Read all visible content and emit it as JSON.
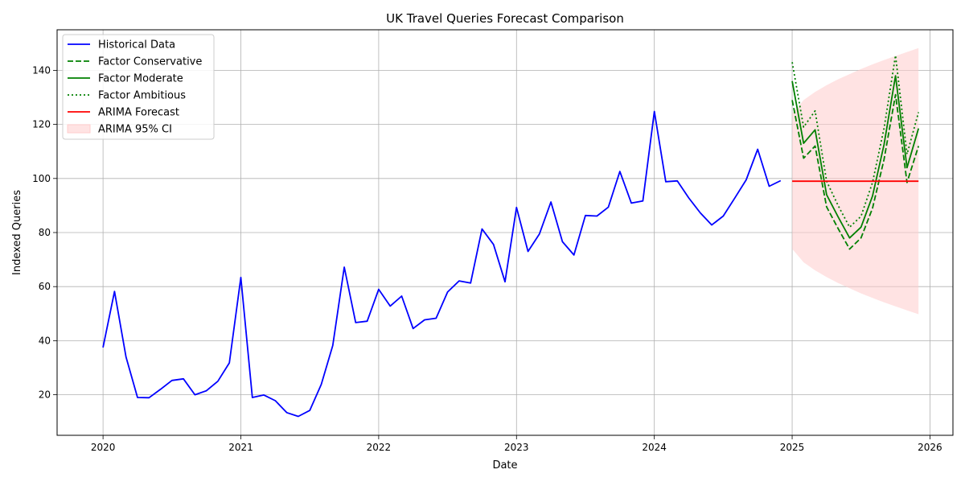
{
  "chart_data": {
    "type": "line",
    "title": "UK Travel Queries Forecast Comparison",
    "xlabel": "Date",
    "ylabel": "Indexed Queries",
    "xlim": [
      "2019-09",
      "2026-03"
    ],
    "ylim": [
      5,
      155
    ],
    "grid": true,
    "legend_position": "top-left",
    "x_ticks": [
      "2020",
      "2021",
      "2022",
      "2023",
      "2024",
      "2025",
      "2026"
    ],
    "y_ticks": [
      20,
      40,
      60,
      80,
      100,
      120,
      140
    ],
    "historical": {
      "name": "Historical Data",
      "color": "#0000ff",
      "style": "solid",
      "x": [
        "2020-01",
        "2020-02",
        "2020-03",
        "2020-04",
        "2020-05",
        "2020-06",
        "2020-07",
        "2020-08",
        "2020-09",
        "2020-10",
        "2020-11",
        "2020-12",
        "2021-01",
        "2021-02",
        "2021-03",
        "2021-04",
        "2021-05",
        "2021-06",
        "2021-07",
        "2021-08",
        "2021-09",
        "2021-10",
        "2021-11",
        "2021-12",
        "2022-01",
        "2022-02",
        "2022-03",
        "2022-04",
        "2022-05",
        "2022-06",
        "2022-07",
        "2022-08",
        "2022-09",
        "2022-10",
        "2022-11",
        "2022-12",
        "2023-01",
        "2023-02",
        "2023-03",
        "2023-04",
        "2023-05",
        "2023-06",
        "2023-07",
        "2023-08",
        "2023-09",
        "2023-10",
        "2023-11",
        "2023-12",
        "2024-01",
        "2024-02",
        "2024-03",
        "2024-04",
        "2024-05",
        "2024-06",
        "2024-07",
        "2024-08",
        "2024-09",
        "2024-10",
        "2024-11",
        "2024-12"
      ],
      "values": [
        37.5,
        58.2,
        34.0,
        19.0,
        18.9,
        22.0,
        25.3,
        25.9,
        20.0,
        21.5,
        25.0,
        31.8,
        63.4,
        19.0,
        19.9,
        17.8,
        13.4,
        12.0,
        14.2,
        23.8,
        38.2,
        67.2,
        46.7,
        47.2,
        59.0,
        52.8,
        56.5,
        44.5,
        47.7,
        48.3,
        58.0,
        62.1,
        61.3,
        81.3,
        75.6,
        61.8,
        89.3,
        73.0,
        79.5,
        91.3,
        76.6,
        71.7,
        86.3,
        86.1,
        89.4,
        102.6,
        90.9,
        91.7,
        124.8,
        98.8,
        99.1,
        92.8,
        87.3,
        82.8,
        86.1,
        92.7,
        99.5,
        110.8,
        97.1,
        99.2
      ]
    },
    "forecast_x": [
      "2025-01",
      "2025-02",
      "2025-03",
      "2025-04",
      "2025-05",
      "2025-06",
      "2025-07",
      "2025-08",
      "2025-09",
      "2025-10",
      "2025-11",
      "2025-12"
    ],
    "series": [
      {
        "name": "Factor Conservative",
        "color": "#008000",
        "style": "dashed",
        "values": [
          129.0,
          107.5,
          112.0,
          89.5,
          81.5,
          73.9,
          78.0,
          89.0,
          107.0,
          131.0,
          98.5,
          112.0
        ]
      },
      {
        "name": "Factor Moderate",
        "color": "#008000",
        "style": "solid",
        "values": [
          136.0,
          113.0,
          118.0,
          94.0,
          85.8,
          78.0,
          82.0,
          93.5,
          112.5,
          138.0,
          104.0,
          118.5
        ]
      },
      {
        "name": "Factor Ambitious",
        "color": "#008000",
        "style": "dotted",
        "values": [
          143.0,
          119.0,
          125.0,
          99.0,
          90.0,
          82.0,
          86.0,
          98.5,
          118.5,
          145.5,
          109.0,
          124.5
        ]
      },
      {
        "name": "ARIMA Forecast",
        "color": "#ff0000",
        "style": "solid",
        "values": [
          99.0,
          99.0,
          99.0,
          99.0,
          99.0,
          99.0,
          99.0,
          99.0,
          99.0,
          99.0,
          99.0,
          99.0
        ]
      }
    ],
    "confidence_interval": {
      "name": "ARIMA 95% CI",
      "color": "#ffcccc",
      "lower": [
        74.0,
        69.0,
        66.0,
        63.5,
        61.3,
        59.4,
        57.5,
        55.8,
        54.2,
        52.7,
        51.2,
        49.8
      ],
      "upper": [
        124.0,
        129.0,
        132.0,
        134.5,
        136.7,
        138.6,
        140.5,
        142.2,
        143.8,
        145.3,
        146.8,
        148.2
      ]
    }
  }
}
